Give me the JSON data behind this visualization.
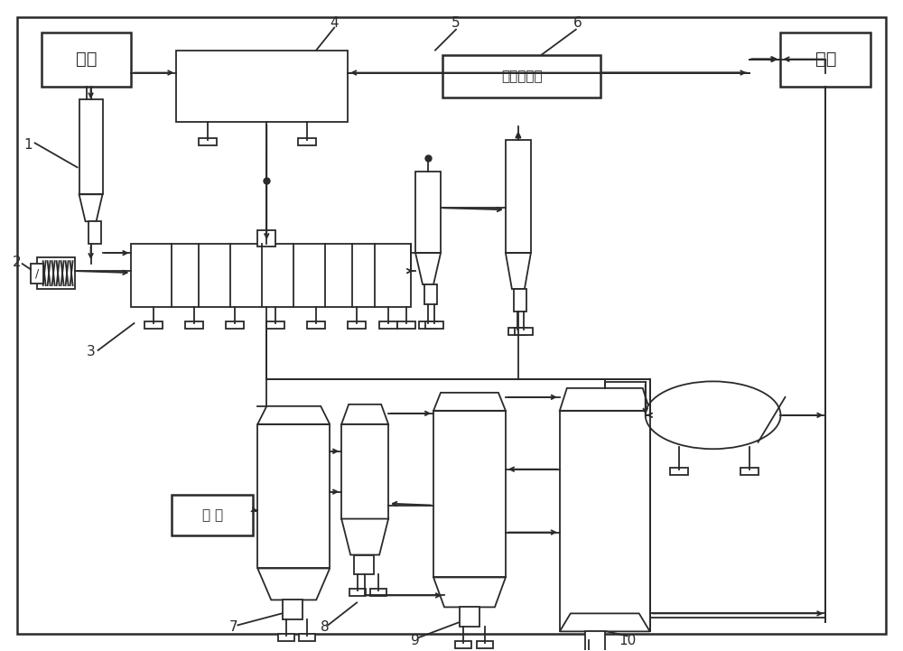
{
  "bg": "#ffffff",
  "lc": "#2a2a2a",
  "lw": 1.3,
  "lw_thick": 1.8,
  "labels": {
    "fenmei": "粉煤",
    "jinghua": "净化热解气",
    "tayong": "它用",
    "kongqi": "空 气"
  }
}
